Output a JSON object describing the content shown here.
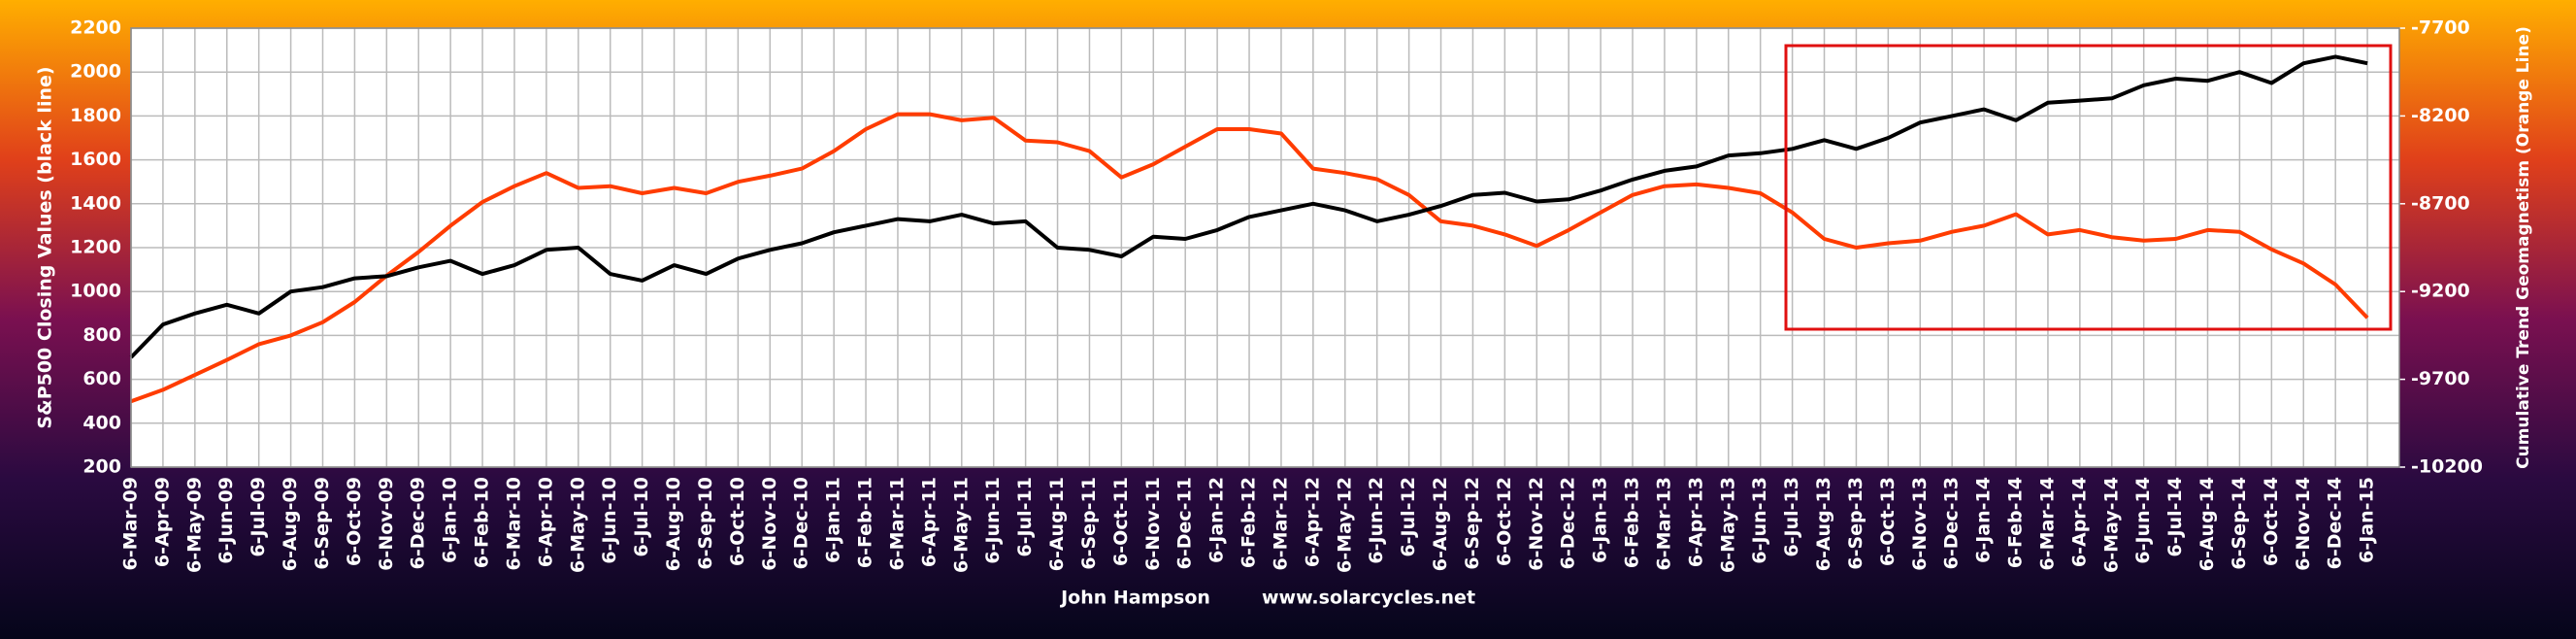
{
  "chart_data": {
    "type": "line",
    "y_label": "S&P500 Closing Values (black line)",
    "y2_label": "Cumulative Trend Geomagnetism (Orange Line)",
    "footer": [
      "John Hampson",
      "www.solarcycles.net"
    ],
    "categories": [
      "6-Mar-09",
      "6-Apr-09",
      "6-May-09",
      "6-Jun-09",
      "6-Jul-09",
      "6-Aug-09",
      "6-Sep-09",
      "6-Oct-09",
      "6-Nov-09",
      "6-Dec-09",
      "6-Jan-10",
      "6-Feb-10",
      "6-Mar-10",
      "6-Apr-10",
      "6-May-10",
      "6-Jun-10",
      "6-Jul-10",
      "6-Aug-10",
      "6-Sep-10",
      "6-Oct-10",
      "6-Nov-10",
      "6-Dec-10",
      "6-Jan-11",
      "6-Feb-11",
      "6-Mar-11",
      "6-Apr-11",
      "6-May-11",
      "6-Jun-11",
      "6-Jul-11",
      "6-Aug-11",
      "6-Sep-11",
      "6-Oct-11",
      "6-Nov-11",
      "6-Dec-11",
      "6-Jan-12",
      "6-Feb-12",
      "6-Mar-12",
      "6-Apr-12",
      "6-May-12",
      "6-Jun-12",
      "6-Jul-12",
      "6-Aug-12",
      "6-Sep-12",
      "6-Oct-12",
      "6-Nov-12",
      "6-Dec-12",
      "6-Jan-13",
      "6-Feb-13",
      "6-Mar-13",
      "6-Apr-13",
      "6-May-13",
      "6-Jun-13",
      "6-Jul-13",
      "6-Aug-13",
      "6-Sep-13",
      "6-Oct-13",
      "6-Nov-13",
      "6-Dec-13",
      "6-Jan-14",
      "6-Feb-14",
      "6-Mar-14",
      "6-Apr-14",
      "6-May-14",
      "6-Jun-14",
      "6-Jul-14",
      "6-Aug-14",
      "6-Sep-14",
      "6-Oct-14",
      "6-Nov-14",
      "6-Dec-14",
      "6-Jan-15"
    ],
    "series": [
      {
        "color": "#000000",
        "values": [
          700,
          850,
          900,
          940,
          900,
          1000,
          1020,
          1060,
          1070,
          1110,
          1140,
          1080,
          1120,
          1190,
          1200,
          1080,
          1050,
          1120,
          1080,
          1150,
          1190,
          1220,
          1270,
          1300,
          1330,
          1320,
          1350,
          1310,
          1320,
          1200,
          1190,
          1160,
          1250,
          1240,
          1280,
          1340,
          1370,
          1400,
          1370,
          1320,
          1350,
          1390,
          1440,
          1450,
          1410,
          1420,
          1460,
          1510,
          1550,
          1570,
          1620,
          1630,
          1650,
          1690,
          1650,
          1700,
          1770,
          1800,
          1830,
          1780,
          1860,
          1870,
          1880,
          1940,
          1970,
          1960,
          2000,
          1950,
          2040,
          2070,
          2040
        ]
      },
      {
        "color": "#ff3c00",
        "axis": "y2",
        "values": [
          -9825,
          -9760,
          -9675,
          -9590,
          -9500,
          -9450,
          -9375,
          -9260,
          -9110,
          -8975,
          -8825,
          -8690,
          -8600,
          -8525,
          -8610,
          -8600,
          -8640,
          -8610,
          -8640,
          -8575,
          -8540,
          -8500,
          -8400,
          -8275,
          -8190,
          -8190,
          -8225,
          -8210,
          -8340,
          -8350,
          -8400,
          -8550,
          -8475,
          -8375,
          -8275,
          -8275,
          -8300,
          -8500,
          -8525,
          -8560,
          -8650,
          -8800,
          -8825,
          -8875,
          -8940,
          -8850,
          -8750,
          -8650,
          -8600,
          -8590,
          -8610,
          -8640,
          -8750,
          -8900,
          -8950,
          -8925,
          -8910,
          -8860,
          -8825,
          -8760,
          -8875,
          -8850,
          -8890,
          -8910,
          -8900,
          -8850,
          -8860,
          -8960,
          -9040,
          -9160,
          -9350
        ]
      }
    ],
    "ylim": [
      200,
      2200
    ],
    "yticks": [
      200,
      400,
      600,
      800,
      1000,
      1200,
      1400,
      1600,
      1800,
      2000,
      2200
    ],
    "y2lim": [
      -10200,
      -7700
    ],
    "y2ticks": [
      -10200,
      -9700,
      -9200,
      -8700,
      -8200,
      -7700
    ],
    "grid": true
  }
}
